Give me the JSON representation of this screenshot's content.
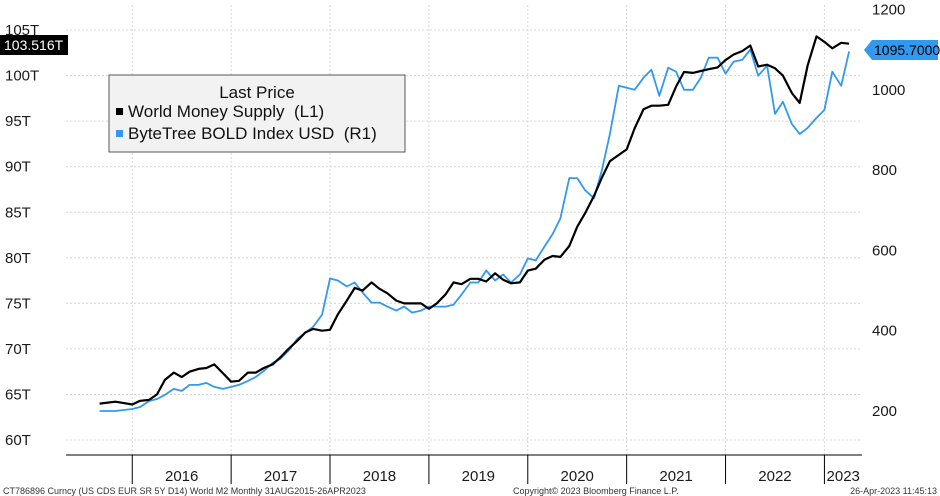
{
  "chart_data": {
    "type": "line",
    "legend_title": "Last Price",
    "x_categories": [
      "2016",
      "2017",
      "2018",
      "2019",
      "2020",
      "2021",
      "2022",
      "2023"
    ],
    "y_left": {
      "ticks": [
        "60T",
        "65T",
        "70T",
        "75T",
        "80T",
        "85T",
        "90T",
        "95T",
        "100T",
        "105T"
      ],
      "ylim": [
        60,
        105
      ]
    },
    "y_right": {
      "ticks": [
        "200",
        "400",
        "600",
        "800",
        "1000",
        "1200"
      ],
      "ylim": [
        100,
        1200
      ]
    },
    "last_value_left": "103.516T",
    "last_value_right": "1095.7000",
    "footer_left": "CT786896 Curncy (US CDS EUR SR 5Y D14) World M2  Monthly 31AUG2015-26APR2023",
    "footer_center": "Copyright© 2023 Bloomberg Finance L.P.",
    "footer_right": "26-Apr-2023 11:45:13",
    "series": [
      {
        "name": "World Money Supply  (L1)",
        "axis": "left",
        "color": "#000000",
        "x": [
          2015.67,
          2015.83,
          2016.0,
          2016.08,
          2016.17,
          2016.25,
          2016.33,
          2016.42,
          2016.5,
          2016.58,
          2016.67,
          2016.75,
          2016.83,
          2016.92,
          2017.0,
          2017.08,
          2017.17,
          2017.25,
          2017.33,
          2017.42,
          2017.5,
          2017.58,
          2017.67,
          2017.75,
          2017.83,
          2017.92,
          2018.0,
          2018.08,
          2018.17,
          2018.25,
          2018.33,
          2018.42,
          2018.5,
          2018.58,
          2018.67,
          2018.75,
          2018.83,
          2018.92,
          2019.0,
          2019.08,
          2019.17,
          2019.25,
          2019.33,
          2019.42,
          2019.5,
          2019.58,
          2019.67,
          2019.75,
          2019.83,
          2019.92,
          2020.0,
          2020.08,
          2020.17,
          2020.25,
          2020.33,
          2020.42,
          2020.5,
          2020.58,
          2020.67,
          2020.75,
          2020.83,
          2020.92,
          2021.0,
          2021.08,
          2021.17,
          2021.25,
          2021.33,
          2021.42,
          2021.5,
          2021.58,
          2021.67,
          2021.75,
          2021.83,
          2021.92,
          2022.0,
          2022.08,
          2022.17,
          2022.25,
          2022.33,
          2022.42,
          2022.5,
          2022.58,
          2022.67,
          2022.75,
          2022.83,
          2022.92,
          2023.0,
          2023.08,
          2023.17,
          2023.25
        ],
        "values": [
          64.0,
          64.2,
          63.9,
          64.3,
          64.4,
          65.0,
          66.6,
          67.4,
          66.9,
          67.5,
          67.8,
          67.9,
          68.3,
          67.3,
          66.4,
          66.5,
          67.4,
          67.4,
          67.9,
          68.3,
          69.1,
          70.0,
          70.9,
          71.8,
          72.2,
          72.0,
          72.1,
          73.8,
          75.3,
          76.7,
          76.4,
          77.3,
          76.6,
          76.1,
          75.3,
          75.0,
          75.0,
          75.0,
          74.4,
          75.0,
          76.0,
          77.3,
          77.1,
          77.7,
          77.7,
          77.4,
          78.3,
          77.6,
          77.2,
          77.3,
          78.6,
          78.8,
          79.8,
          80.2,
          80.1,
          81.3,
          83.4,
          84.9,
          86.8,
          88.8,
          90.6,
          91.3,
          91.9,
          94.2,
          96.3,
          96.7,
          96.7,
          96.8,
          98.8,
          100.4,
          100.3,
          100.5,
          100.7,
          100.9,
          101.7,
          102.3,
          102.7,
          103.3,
          101.0,
          101.2,
          100.8,
          100.0,
          98.1,
          97.0,
          101.1,
          104.3,
          103.7,
          103.0,
          103.6,
          103.5
        ]
      },
      {
        "name": "ByteTree BOLD Index USD  (R1)",
        "axis": "right",
        "color": "#3399ee",
        "x": [
          2015.67,
          2015.83,
          2016.0,
          2016.08,
          2016.17,
          2016.25,
          2016.33,
          2016.42,
          2016.5,
          2016.58,
          2016.67,
          2016.75,
          2016.83,
          2016.92,
          2017.0,
          2017.08,
          2017.17,
          2017.25,
          2017.33,
          2017.42,
          2017.5,
          2017.58,
          2017.67,
          2017.75,
          2017.83,
          2017.92,
          2018.0,
          2018.08,
          2018.17,
          2018.25,
          2018.33,
          2018.42,
          2018.5,
          2018.58,
          2018.67,
          2018.75,
          2018.83,
          2018.92,
          2019.0,
          2019.08,
          2019.17,
          2019.25,
          2019.33,
          2019.42,
          2019.5,
          2019.58,
          2019.67,
          2019.75,
          2019.83,
          2019.92,
          2020.0,
          2020.08,
          2020.17,
          2020.25,
          2020.33,
          2020.42,
          2020.5,
          2020.58,
          2020.67,
          2020.75,
          2020.83,
          2020.92,
          2021.0,
          2021.08,
          2021.17,
          2021.25,
          2021.33,
          2021.42,
          2021.5,
          2021.58,
          2021.67,
          2021.75,
          2021.83,
          2021.92,
          2022.0,
          2022.08,
          2022.17,
          2022.25,
          2022.33,
          2022.42,
          2022.5,
          2022.58,
          2022.67,
          2022.75,
          2022.83,
          2022.92,
          2023.0,
          2023.08,
          2023.17,
          2023.25
        ],
        "values": [
          200,
          200,
          205,
          210,
          225,
          230,
          240,
          255,
          250,
          265,
          265,
          270,
          260,
          255,
          260,
          265,
          275,
          285,
          300,
          320,
          330,
          350,
          380,
          395,
          410,
          440,
          530,
          525,
          510,
          520,
          495,
          470,
          470,
          460,
          450,
          460,
          445,
          450,
          460,
          460,
          460,
          465,
          490,
          520,
          520,
          550,
          525,
          540,
          520,
          540,
          580,
          575,
          610,
          640,
          680,
          780,
          780,
          750,
          730,
          800,
          890,
          1010,
          1005,
          1000,
          1030,
          1050,
          985,
          1055,
          1045,
          1000,
          1000,
          1030,
          1080,
          1080,
          1040,
          1070,
          1075,
          1100,
          1035,
          1060,
          940,
          970,
          915,
          890,
          905,
          930,
          950,
          1045,
          1010,
          1095.7
        ]
      }
    ]
  }
}
